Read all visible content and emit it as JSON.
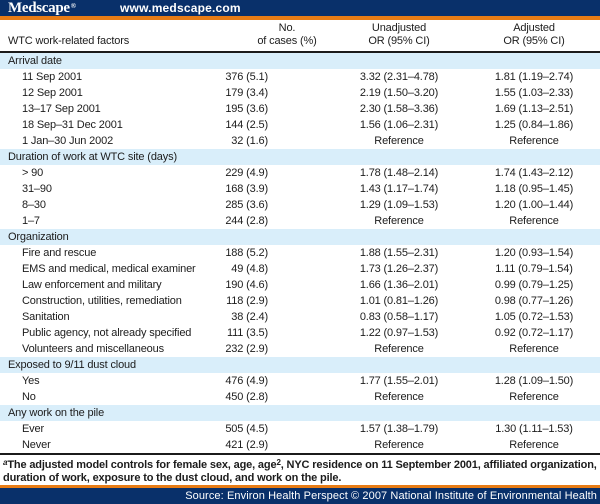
{
  "colors": {
    "navy": "#09306a",
    "orange": "#e87c15",
    "section_blue": "#d9eefa",
    "text": "#1c1c1c"
  },
  "banner": {
    "logo": "Medscape",
    "logo_mark": "®",
    "url": "www.medscape.com"
  },
  "table": {
    "columns": [
      {
        "line1": "",
        "line2": "WTC work-related factors"
      },
      {
        "line1": "No.",
        "line2": "of cases (%)"
      },
      {
        "line1": "Unadjusted",
        "line2": "OR (95% CI)"
      },
      {
        "line1": "Adjusted",
        "line2": "OR (95% CI)"
      }
    ],
    "sections": [
      {
        "title": "Arrival date",
        "rows": [
          {
            "factor": "11 Sep 2001",
            "cases": "376 (5.1)",
            "unadjusted": "3.32 (2.31–4.78)",
            "adjusted": "1.81 (1.19–2.74)"
          },
          {
            "factor": "12 Sep 2001",
            "cases": "179 (3.4)",
            "unadjusted": "2.19 (1.50–3.20)",
            "adjusted": "1.55 (1.03–2.33)"
          },
          {
            "factor": "13–17 Sep 2001",
            "cases": "195 (3.6)",
            "unadjusted": "2.30 (1.58–3.36)",
            "adjusted": "1.69 (1.13–2.51)"
          },
          {
            "factor": "18 Sep–31 Dec 2001",
            "cases": "144 (2.5)",
            "unadjusted": "1.56 (1.06–2.31)",
            "adjusted": "1.25 (0.84–1.86)"
          },
          {
            "factor": "1 Jan–30 Jun 2002",
            "cases": "32 (1.6)",
            "unadjusted": "Reference",
            "adjusted": "Reference"
          }
        ]
      },
      {
        "title": "Duration of work at WTC site (days)",
        "rows": [
          {
            "factor": "> 90",
            "cases": "229 (4.9)",
            "unadjusted": "1.78 (1.48–2.14)",
            "adjusted": "1.74 (1.43–2.12)"
          },
          {
            "factor": "31–90",
            "cases": "168 (3.9)",
            "unadjusted": "1.43 (1.17–1.74)",
            "adjusted": "1.18 (0.95–1.45)"
          },
          {
            "factor": "8–30",
            "cases": "285 (3.6)",
            "unadjusted": "1.29 (1.09–1.53)",
            "adjusted": "1.20 (1.00–1.44)"
          },
          {
            "factor": "1–7",
            "cases": "244 (2.8)",
            "unadjusted": "Reference",
            "adjusted": "Reference"
          }
        ]
      },
      {
        "title": "Organization",
        "rows": [
          {
            "factor": "Fire and rescue",
            "cases": "188 (5.2)",
            "unadjusted": "1.88 (1.55–2.31)",
            "adjusted": "1.20 (0.93–1.54)"
          },
          {
            "factor": "EMS and medical, medical examiner",
            "cases": "49 (4.8)",
            "unadjusted": "1.73 (1.26–2.37)",
            "adjusted": "1.11 (0.79–1.54)"
          },
          {
            "factor": "Law enforcement and military",
            "cases": "190 (4.6)",
            "unadjusted": "1.66 (1.36–2.01)",
            "adjusted": "0.99 (0.79–1.25)"
          },
          {
            "factor": "Construction, utilities, remediation",
            "cases": "118 (2.9)",
            "unadjusted": "1.01 (0.81–1.26)",
            "adjusted": "0.98 (0.77–1.26)"
          },
          {
            "factor": "Sanitation",
            "cases": "38 (2.4)",
            "unadjusted": "0.83 (0.58–1.17)",
            "adjusted": "1.05 (0.72–1.53)"
          },
          {
            "factor": "Public agency, not already specified",
            "cases": "111 (3.5)",
            "unadjusted": "1.22 (0.97–1.53)",
            "adjusted": "0.92 (0.72–1.17)"
          },
          {
            "factor": "Volunteers and miscellaneous",
            "cases": "232 (2.9)",
            "unadjusted": "Reference",
            "adjusted": "Reference"
          }
        ]
      },
      {
        "title": "Exposed to 9/11 dust cloud",
        "rows": [
          {
            "factor": "Yes",
            "cases": "476 (4.9)",
            "unadjusted": "1.77 (1.55–2.01)",
            "adjusted": "1.28 (1.09–1.50)"
          },
          {
            "factor": "No",
            "cases": "450 (2.8)",
            "unadjusted": "Reference",
            "adjusted": "Reference"
          }
        ]
      },
      {
        "title": "Any work on the pile",
        "rows": [
          {
            "factor": "Ever",
            "cases": "505 (4.5)",
            "unadjusted": "1.57 (1.38–1.79)",
            "adjusted": "1.30 (1.11–1.53)"
          },
          {
            "factor": "Never",
            "cases": "421 (2.9)",
            "unadjusted": "Reference",
            "adjusted": "Reference"
          }
        ]
      }
    ]
  },
  "footnote": {
    "marker": "a",
    "part1": "The adjusted model controls for female sex, age, age",
    "sup": "2",
    "part2": ", NYC residence on 11 September 2001, affiliated organization, duration of work, exposure to the dust cloud, and work on the pile."
  },
  "footer": {
    "source": "Source: Environ Health Perspect © 2007 National Institute of Environmental Health"
  }
}
